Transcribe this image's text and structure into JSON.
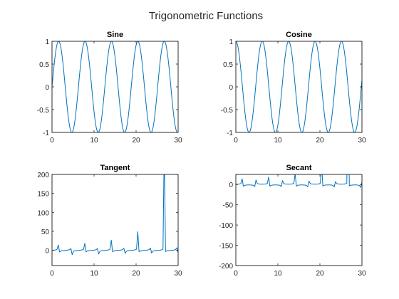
{
  "figure": {
    "title": "Trigonometric Functions",
    "line_color": "#0072BD",
    "axis_color": "#262626"
  },
  "chart_data": [
    {
      "type": "line",
      "title": "Sine",
      "function": "sin",
      "xlim": [
        0,
        30
      ],
      "ylim": [
        -1,
        1
      ],
      "xticks": [
        0,
        10,
        20,
        30
      ],
      "xtick_labels": [
        "0",
        "10",
        "20",
        "30"
      ],
      "yticks": [
        -1,
        -0.5,
        0,
        0.5,
        1
      ],
      "ytick_labels": [
        "-1",
        "-0.5",
        "0",
        "0.5",
        "1"
      ],
      "x_range": [
        0,
        30
      ],
      "samples": 301,
      "grid": false
    },
    {
      "type": "line",
      "title": "Cosine",
      "function": "cos",
      "xlim": [
        0,
        30
      ],
      "ylim": [
        -1,
        1
      ],
      "xticks": [
        0,
        10,
        20,
        30
      ],
      "xtick_labels": [
        "0",
        "10",
        "20",
        "30"
      ],
      "yticks": [
        -1,
        -0.5,
        0,
        0.5,
        1
      ],
      "ytick_labels": [
        "-1",
        "-0.5",
        "0",
        "0.5",
        "1"
      ],
      "x_range": [
        0,
        30
      ],
      "samples": 301,
      "grid": false
    },
    {
      "type": "line",
      "title": "Tangent",
      "function": "tan",
      "xlim": [
        0,
        30
      ],
      "ylim": [
        -40,
        200
      ],
      "xticks": [
        0,
        10,
        20,
        30
      ],
      "xtick_labels": [
        "0",
        "10",
        "20",
        "30"
      ],
      "yticks": [
        0,
        50,
        100,
        150,
        200
      ],
      "ytick_labels": [
        "0",
        "50",
        "100",
        "150",
        "200"
      ],
      "x_range": [
        0,
        30
      ],
      "samples": 101,
      "grid": false
    },
    {
      "type": "line",
      "title": "Secant",
      "function": "sec",
      "xlim": [
        0,
        30
      ],
      "ylim": [
        -200,
        25
      ],
      "xticks": [
        0,
        10,
        20,
        30
      ],
      "xtick_labels": [
        "0",
        "10",
        "20",
        "30"
      ],
      "yticks": [
        -200,
        -150,
        -100,
        -50,
        0
      ],
      "ytick_labels": [
        "-200",
        "-150",
        "-100",
        "-50",
        "0"
      ],
      "x_range": [
        0,
        30
      ],
      "samples": 101,
      "grid": false
    }
  ]
}
